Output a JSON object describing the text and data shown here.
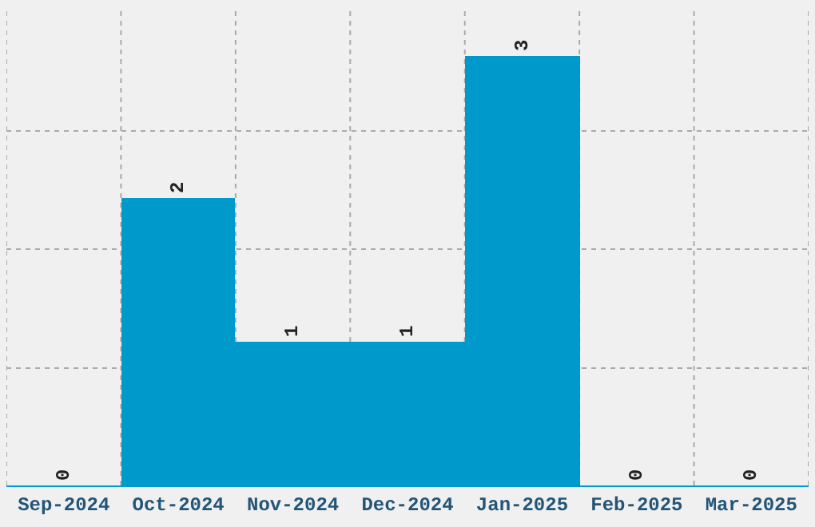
{
  "chart_data": {
    "type": "bar",
    "categories": [
      "Sep-2024",
      "Oct-2024",
      "Nov-2024",
      "Dec-2024",
      "Jan-2025",
      "Feb-2025",
      "Mar-2025"
    ],
    "values": [
      0,
      2,
      1,
      1,
      3,
      0,
      0
    ],
    "color": "#0099cc",
    "ylim": [
      0,
      3.34
    ],
    "yticks": [
      {
        "value": 0.82,
        "label": null
      },
      {
        "value": 1.65,
        "label": null
      },
      {
        "value": 2.47,
        "label": null
      }
    ],
    "tick_labels": "x",
    "grid": true,
    "data_labels": true,
    "legend": false
  }
}
